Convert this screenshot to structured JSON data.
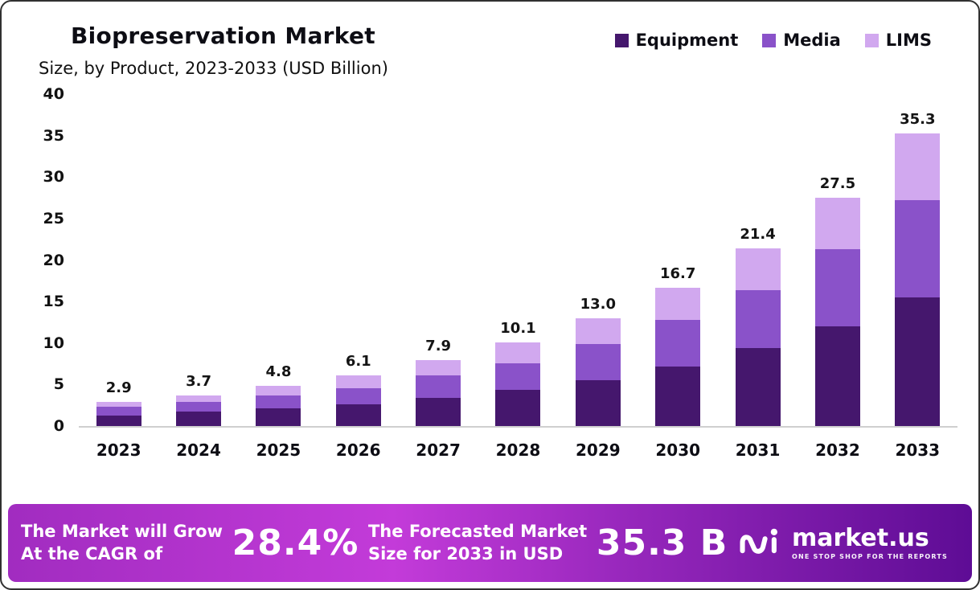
{
  "title": "Biopreservation Market",
  "subtitle": "Size, by Product, 2023-2033 (USD Billion)",
  "legend": [
    {
      "label": "Equipment",
      "color": "#45176d"
    },
    {
      "label": "Media",
      "color": "#8a52c9"
    },
    {
      "label": "LIMS",
      "color": "#d1a8ef"
    }
  ],
  "chart_data": {
    "type": "bar",
    "stacked": true,
    "title": "Biopreservation Market Size, by Product, 2023-2033 (USD Billion)",
    "categories": [
      "2023",
      "2024",
      "2025",
      "2026",
      "2027",
      "2028",
      "2029",
      "2030",
      "2031",
      "2032",
      "2033"
    ],
    "series": [
      {
        "name": "Equipment",
        "color": "#45176d",
        "values": [
          1.3,
          1.7,
          2.1,
          2.6,
          3.4,
          4.4,
          5.5,
          7.2,
          9.4,
          12.0,
          15.5
        ]
      },
      {
        "name": "Media",
        "color": "#8a52c9",
        "values": [
          1.0,
          1.2,
          1.6,
          2.0,
          2.7,
          3.2,
          4.4,
          5.6,
          7.0,
          9.3,
          11.7
        ]
      },
      {
        "name": "LIMS",
        "color": "#d1a8ef",
        "values": [
          0.6,
          0.8,
          1.1,
          1.5,
          1.8,
          2.5,
          3.1,
          3.9,
          5.0,
          6.2,
          8.1
        ]
      }
    ],
    "totals": [
      2.9,
      3.7,
      4.8,
      6.1,
      7.9,
      10.1,
      13.0,
      16.7,
      21.4,
      27.5,
      35.3
    ],
    "total_labels": [
      "2.9",
      "3.7",
      "4.8",
      "6.1",
      "7.9",
      "10.1",
      "13.0",
      "16.7",
      "21.4",
      "27.5",
      "35.3"
    ],
    "xlabel": "",
    "ylabel": "",
    "ylim": [
      0,
      40
    ],
    "yticks": [
      0,
      5,
      10,
      15,
      20,
      25,
      30,
      35,
      40
    ],
    "grid": false,
    "legend_position": "top-right"
  },
  "banner": {
    "cagr_label_line1": "The Market will Grow",
    "cagr_label_line2": "At the CAGR of",
    "cagr_value": "28.4%",
    "forecast_label_line1": "The Forecasted Market",
    "forecast_label_line2": "Size for 2033 in USD",
    "forecast_value": "35.3 B",
    "brand": "market.us",
    "brand_tagline": "ONE STOP SHOP FOR THE REPORTS"
  }
}
